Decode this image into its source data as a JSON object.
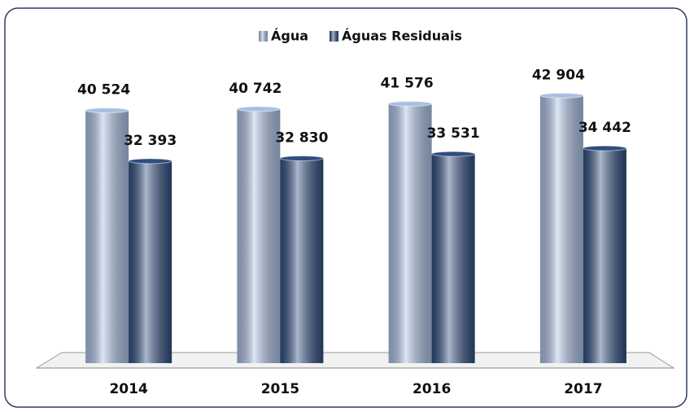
{
  "chart_data": {
    "type": "bar",
    "categories": [
      "2014",
      "2015",
      "2016",
      "2017"
    ],
    "series": [
      {
        "name": "Água",
        "color": "#a9bfe3",
        "values": [
          40524,
          40742,
          41576,
          42904
        ],
        "value_labels": [
          "40 524",
          "40 742",
          "41 576",
          "42 904"
        ]
      },
      {
        "name": "Águas Residuais",
        "color": "#2f4d7e",
        "values": [
          32393,
          32830,
          33531,
          34442
        ],
        "value_labels": [
          "32 393",
          "32 830",
          "33 531",
          "34 442"
        ]
      }
    ],
    "ylim": [
      0,
      50000
    ],
    "legend": "top"
  }
}
